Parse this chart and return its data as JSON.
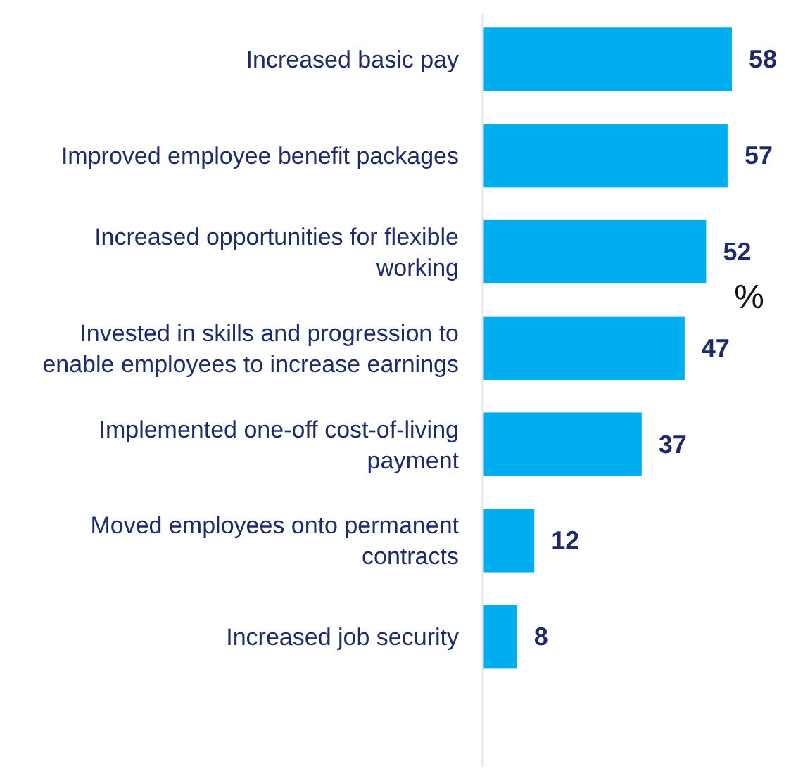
{
  "chart_data": {
    "type": "bar",
    "orientation": "horizontal",
    "categories": [
      "Increased basic pay",
      "Improved employee benefit packages",
      "Increased opportunities for flexible working",
      "Invested in skills and progression to enable employees to increase earnings",
      "Implemented one-off cost-of-living payment",
      "Moved employees onto permanent contracts",
      "Increased job security"
    ],
    "values": [
      58,
      57,
      52,
      47,
      37,
      12,
      8
    ],
    "color": "#00aeef",
    "data_labels": true,
    "annotations": [
      "%"
    ]
  }
}
